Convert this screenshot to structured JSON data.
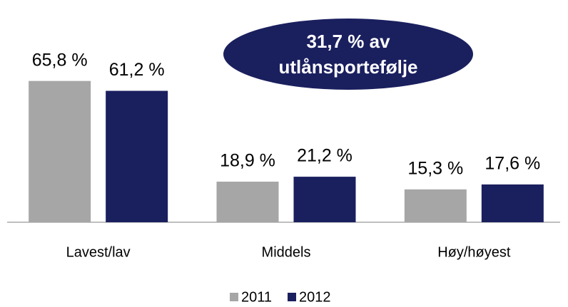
{
  "chart_data": {
    "type": "bar",
    "categories": [
      "Lavest/lav",
      "Middels",
      "Høy/høyest"
    ],
    "series": [
      {
        "name": "2011",
        "color": "#a6a6a6",
        "values": [
          65.8,
          18.9,
          15.3
        ],
        "value_labels": [
          "65,8 %",
          "18,9 %",
          "15,3 %"
        ]
      },
      {
        "name": "2012",
        "color": "#1a1f5e",
        "values": [
          61.2,
          21.2,
          17.6
        ],
        "value_labels": [
          "61,2 %",
          "21,2 %",
          "17,6 %"
        ]
      }
    ],
    "ylim": [
      0,
      70
    ],
    "annotation": [
      "31,7 % av",
      "utlånsportefølje"
    ]
  }
}
